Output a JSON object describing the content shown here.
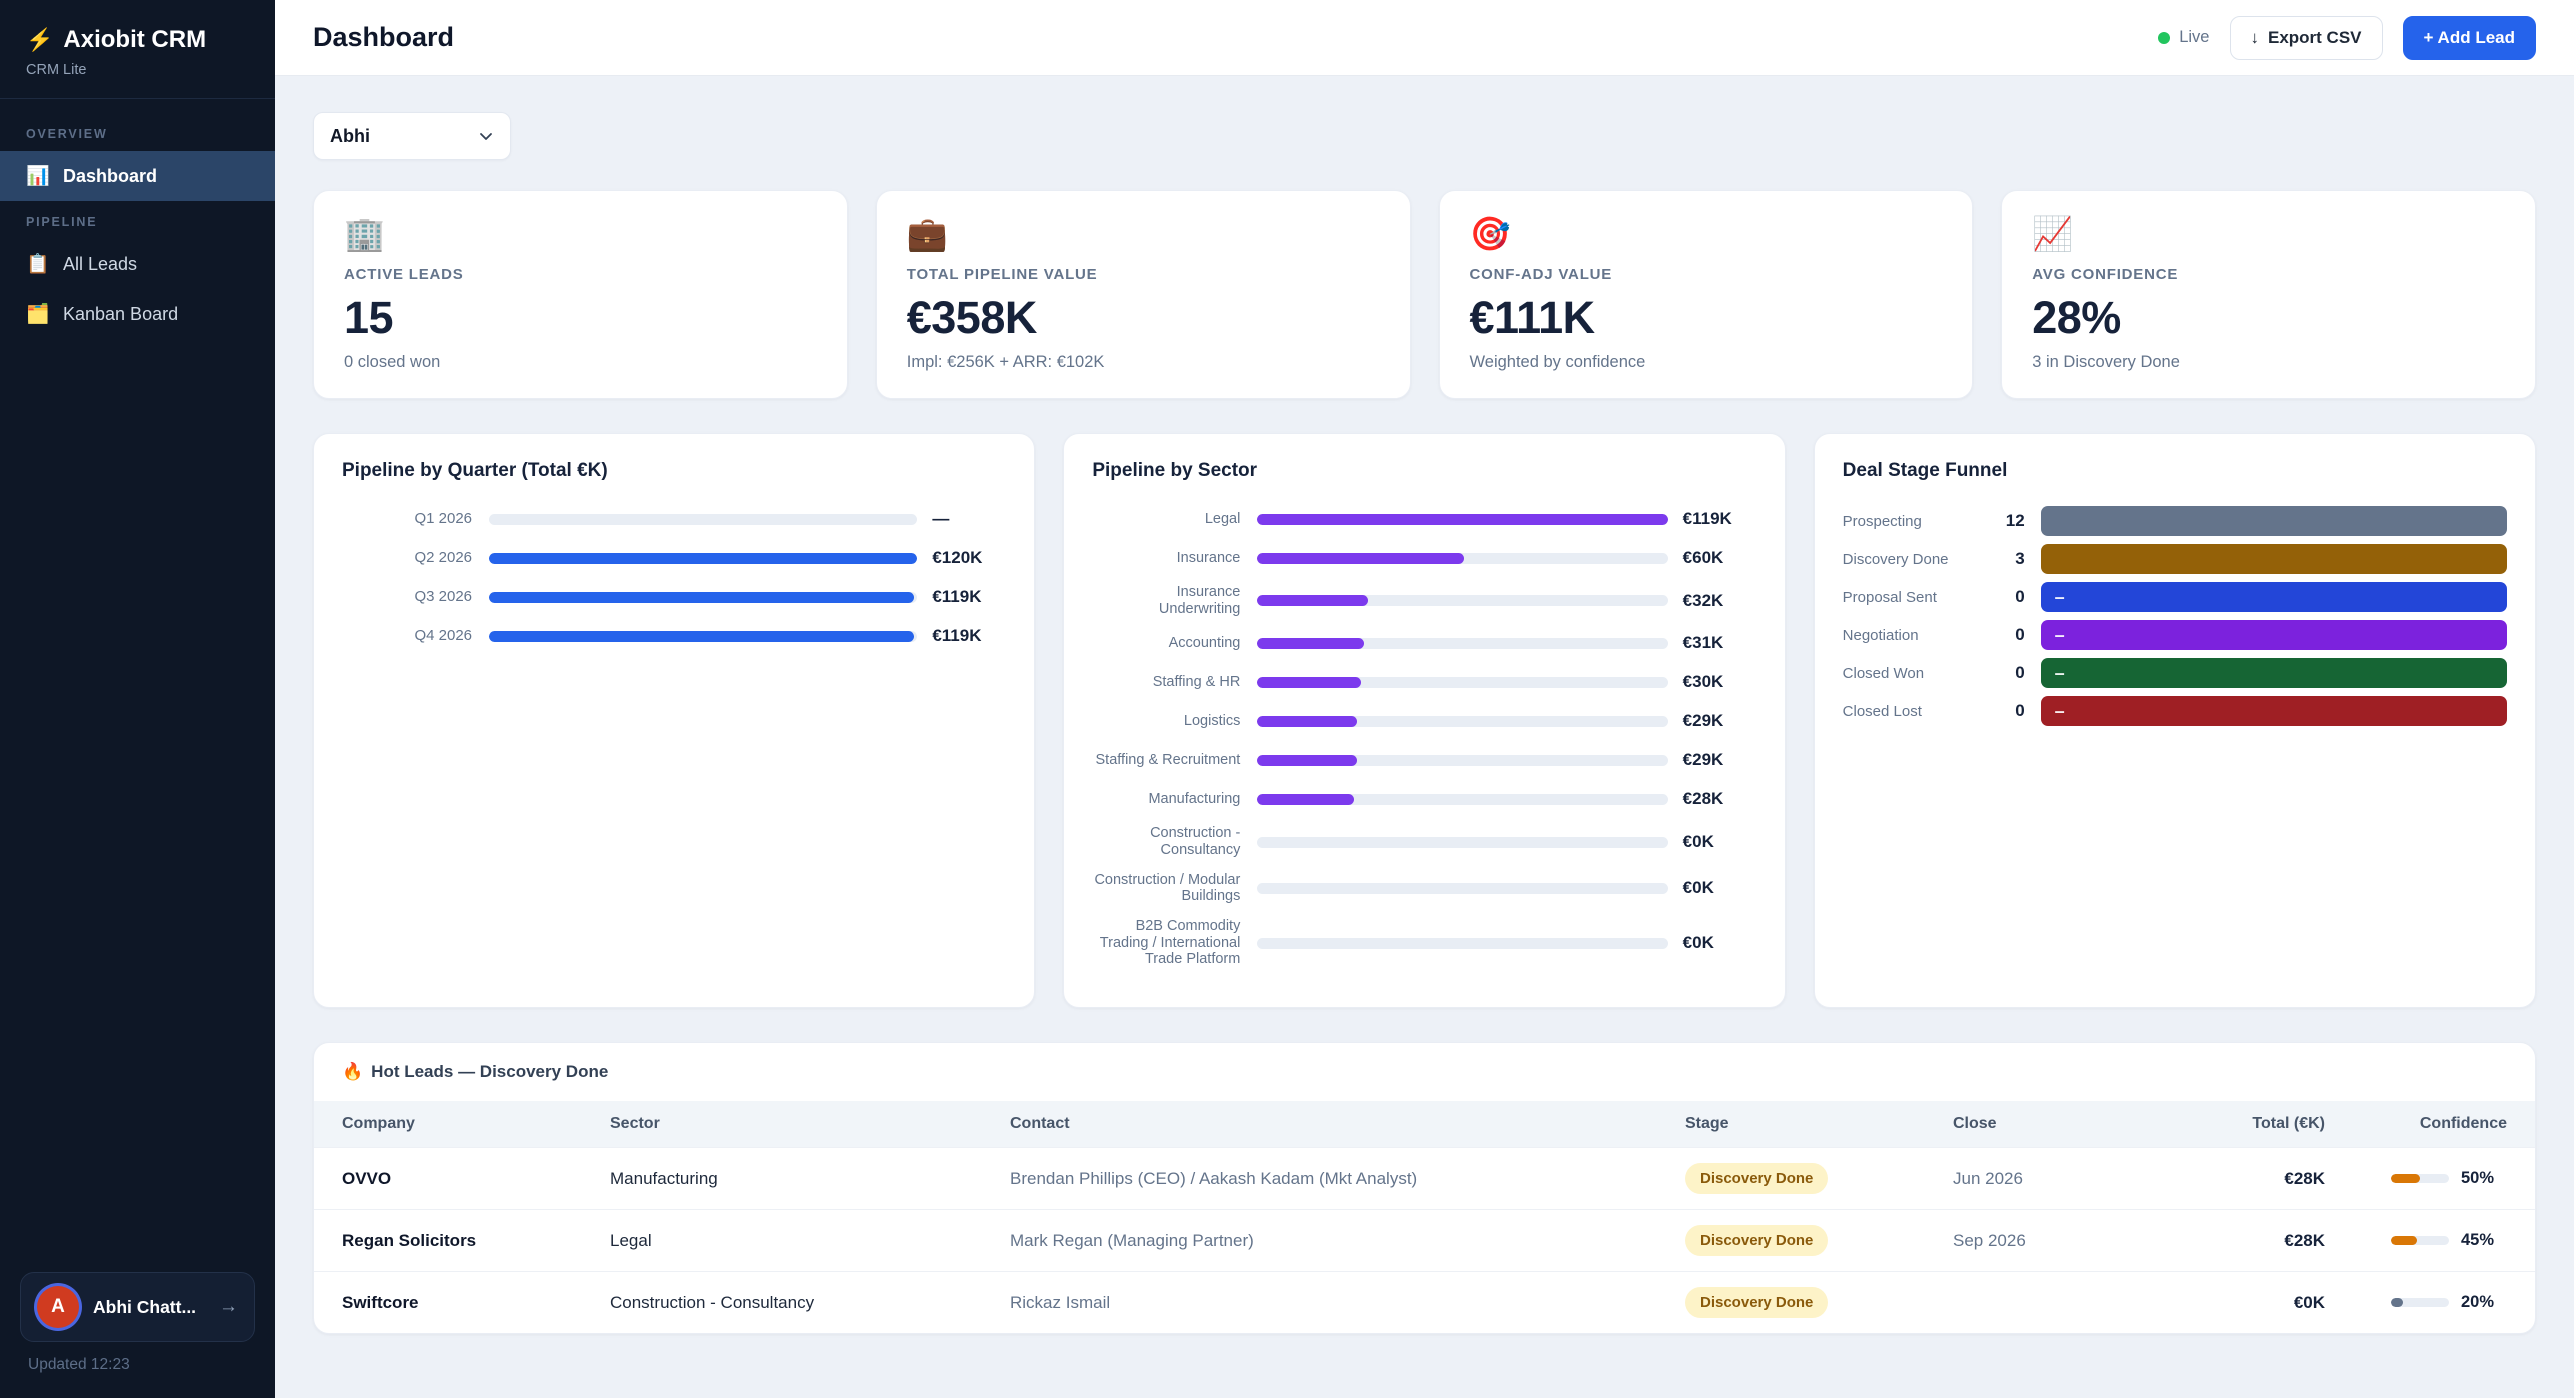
{
  "app": {
    "name": "Axiobit CRM",
    "subtitle": "CRM Lite",
    "logo_icon": "⚡"
  },
  "sidebar": {
    "sections": [
      {
        "label": "OVERVIEW",
        "items": [
          {
            "label": "Dashboard",
            "icon": "📊"
          }
        ]
      },
      {
        "label": "PIPELINE",
        "items": [
          {
            "label": "All Leads",
            "icon": "📋"
          },
          {
            "label": "Kanban Board",
            "icon": "🗂️"
          }
        ]
      }
    ],
    "user": {
      "avatar_letter": "A",
      "name": "Abhi Chatt...",
      "arrow": "→"
    },
    "updated": "Updated 12:23"
  },
  "header": {
    "title": "Dashboard",
    "live_label": "Live",
    "export_icon": "↓",
    "export_label": "Export CSV",
    "add_label": "+ Add Lead"
  },
  "filters": {
    "owner_select": {
      "value": "Abhi"
    }
  },
  "kpis": [
    {
      "icon": "🏢",
      "label": "ACTIVE LEADS",
      "value": "15",
      "sub": "0 closed won"
    },
    {
      "icon": "💼",
      "label": "TOTAL PIPELINE VALUE",
      "value": "€358K",
      "sub": "Impl: €256K + ARR: €102K"
    },
    {
      "icon": "🎯",
      "label": "CONF-ADJ VALUE",
      "value": "€111K",
      "sub": "Weighted by confidence"
    },
    {
      "icon": "📈",
      "label": "AVG CONFIDENCE",
      "value": "28%",
      "sub": "3 in Discovery Done"
    }
  ],
  "chart_data": [
    {
      "type": "bar",
      "orientation": "horizontal",
      "title": "Pipeline by Quarter (Total €K)",
      "categories": [
        "Q1 2026",
        "Q2 2026",
        "Q3 2026",
        "Q4 2026"
      ],
      "values": [
        0,
        120,
        119,
        119
      ],
      "value_labels": [
        "—",
        "€120K",
        "€119K",
        "€119K"
      ],
      "max": 120,
      "bar_color": "#2563eb",
      "track_color": "#e8edf4"
    },
    {
      "type": "bar",
      "orientation": "horizontal",
      "title": "Pipeline by Sector",
      "categories": [
        "Legal",
        "Insurance",
        "Insurance Underwriting",
        "Accounting",
        "Staffing & HR",
        "Logistics",
        "Staffing & Recruitment",
        "Manufacturing",
        "Construction - Consultancy",
        "Construction / Modular Buildings",
        "B2B Commodity Trading / International Trade Platform"
      ],
      "values": [
        119,
        60,
        32,
        31,
        30,
        29,
        29,
        28,
        0,
        0,
        0
      ],
      "value_labels": [
        "€119K",
        "€60K",
        "€32K",
        "€31K",
        "€30K",
        "€29K",
        "€29K",
        "€28K",
        "€0K",
        "€0K",
        "€0K"
      ],
      "max": 119,
      "bar_color": "#7c3aed",
      "track_color": "#e8edf4"
    },
    {
      "type": "bar",
      "orientation": "horizontal",
      "full_width_bars": true,
      "title": "Deal Stage Funnel",
      "categories": [
        "Prospecting",
        "Discovery Done",
        "Proposal Sent",
        "Negotiation",
        "Closed Won",
        "Closed Lost"
      ],
      "values": [
        12,
        3,
        0,
        0,
        0,
        0
      ],
      "value_labels": [
        "12",
        "3",
        "0",
        "0",
        "0",
        "0"
      ],
      "bar_labels": [
        "",
        "",
        "–",
        "–",
        "–",
        "–"
      ],
      "bar_colors": [
        "#64748b",
        "#946108",
        "#2346d8",
        "#7c22dd",
        "#166534",
        "#9f1f24"
      ]
    }
  ],
  "hot_leads": {
    "title_icon": "🔥",
    "title": "Hot Leads — Discovery Done",
    "columns": [
      "Company",
      "Sector",
      "Contact",
      "Stage",
      "Close",
      "Total (€K)",
      "Confidence"
    ],
    "rows": [
      {
        "company": "OVVO",
        "sector": "Manufacturing",
        "contact": "Brendan Phillips (CEO) / Aakash Kadam (Mkt Analyst)",
        "stage": "Discovery Done",
        "close": "Jun 2026",
        "total": "€28K",
        "confidence": "50%",
        "confidence_pct": 50,
        "confidence_color": "#d97706"
      },
      {
        "company": "Regan Solicitors",
        "sector": "Legal",
        "contact": "Mark Regan (Managing Partner)",
        "stage": "Discovery Done",
        "close": "Sep 2026",
        "total": "€28K",
        "confidence": "45%",
        "confidence_pct": 45,
        "confidence_color": "#d97706"
      },
      {
        "company": "Swiftcore",
        "sector": "Construction - Consultancy",
        "contact": "Rickaz Ismail",
        "stage": "Discovery Done",
        "close": "",
        "total": "€0K",
        "confidence": "20%",
        "confidence_pct": 20,
        "confidence_color": "#64748b"
      }
    ]
  },
  "colors": {
    "accent_blue": "#2563eb",
    "accent_purple": "#7c3aed",
    "live_green": "#22c55e",
    "badge_bg": "#fdf3c8",
    "badge_text": "#8a5a0b"
  }
}
